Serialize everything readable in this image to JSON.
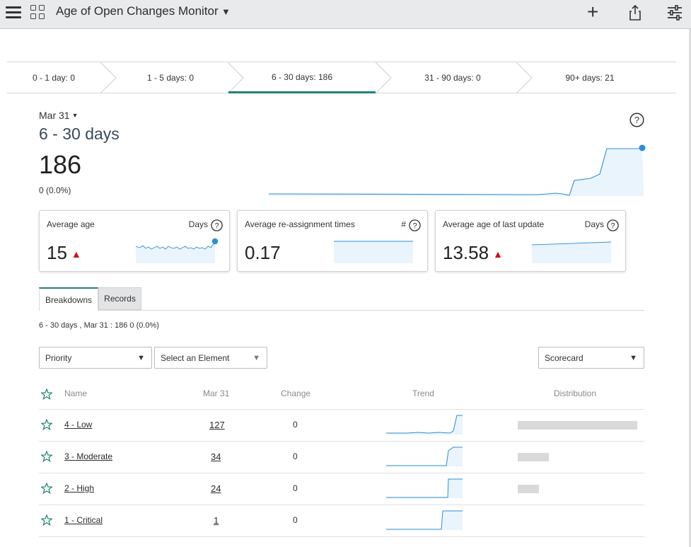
{
  "header": {
    "title": "Age of Open Changes Monitor"
  },
  "age_tabs": [
    {
      "label": "0 - 1 day: 0"
    },
    {
      "label": "1 - 5 days: 0"
    },
    {
      "label": "6 - 30 days: 186",
      "active": true
    },
    {
      "label": "31 - 90 days: 0"
    },
    {
      "label": "90+ days: 21"
    }
  ],
  "main": {
    "period": "Mar 31",
    "range_title": "6 - 30 days",
    "value": "186",
    "change": "0 (0.0%)"
  },
  "cards": [
    {
      "label": "Average age",
      "unit": "Days",
      "value": "15",
      "trend_up": true
    },
    {
      "label": "Average re-assignment times",
      "unit": "#",
      "value": "0.17",
      "trend_up": false
    },
    {
      "label": "Average age of last update",
      "unit": "Days",
      "value": "13.58",
      "trend_up": true
    }
  ],
  "subtabs": {
    "breakdowns": "Breakdowns",
    "records": "Records"
  },
  "summary": "6 - 30 days , Mar 31 : 186 0 (0.0%)",
  "filters": {
    "breakdown": "Priority",
    "element": "Select an Element",
    "view": "Scorecard"
  },
  "table": {
    "headers": {
      "name": "Name",
      "date": "Mar 31",
      "change": "Change",
      "trend": "Trend",
      "distribution": "Distribution"
    },
    "rows": [
      {
        "name": "4 - Low",
        "count": "127",
        "change": "0",
        "share": 1.0
      },
      {
        "name": "3 - Moderate",
        "count": "34",
        "change": "0",
        "share": 0.26
      },
      {
        "name": "2 - High",
        "count": "24",
        "change": "0",
        "share": 0.18
      },
      {
        "name": "1 - Critical",
        "count": "1",
        "change": "0",
        "share": 0
      }
    ]
  },
  "colors": {
    "accent": "#1f8476",
    "spark_line": "#2e8fd6",
    "spark_fill": "#eaf4fc",
    "up_arrow": "#e00000"
  }
}
